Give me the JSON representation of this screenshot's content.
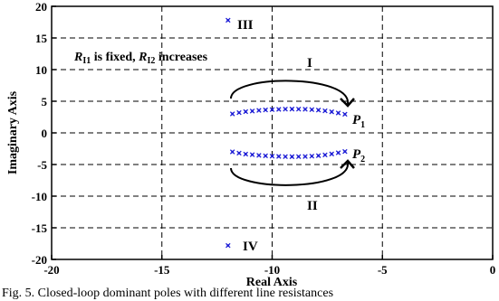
{
  "chart_data": {
    "type": "scatter",
    "xlabel": "Real Axis",
    "ylabel": "Imaginary Axis",
    "xlim": [
      -20,
      0
    ],
    "ylim": [
      -20,
      20
    ],
    "x_ticks": [
      -20,
      -15,
      -10,
      -5,
      0
    ],
    "y_ticks": [
      -20,
      -15,
      -10,
      -5,
      0,
      5,
      10,
      15,
      20
    ],
    "grid": true,
    "marker_color": "#1f1fd6",
    "series": [
      {
        "x": [
          -11.8,
          -11.5,
          -11.2,
          -10.9,
          -10.6,
          -10.3,
          -10.0,
          -9.7,
          -9.4,
          -9.1,
          -8.8,
          -8.5,
          -8.2,
          -7.9,
          -7.6,
          -7.3,
          -7.0,
          -6.7
        ],
        "y": [
          3.0,
          3.2,
          3.35,
          3.45,
          3.55,
          3.62,
          3.68,
          3.72,
          3.75,
          3.76,
          3.75,
          3.73,
          3.68,
          3.6,
          3.48,
          3.33,
          3.15,
          2.95
        ]
      },
      {
        "x": [
          -11.8,
          -11.5,
          -11.2,
          -10.9,
          -10.6,
          -10.3,
          -10.0,
          -9.7,
          -9.4,
          -9.1,
          -8.8,
          -8.5,
          -8.2,
          -7.9,
          -7.6,
          -7.3,
          -7.0,
          -6.7
        ],
        "y": [
          -3.0,
          -3.2,
          -3.35,
          -3.45,
          -3.55,
          -3.62,
          -3.68,
          -3.72,
          -3.75,
          -3.76,
          -3.75,
          -3.73,
          -3.68,
          -3.6,
          -3.48,
          -3.33,
          -3.15,
          -2.95
        ]
      },
      {
        "x": [
          -12.0
        ],
        "y": [
          17.8
        ]
      },
      {
        "x": [
          -12.0
        ],
        "y": [
          -17.8
        ]
      }
    ],
    "annotations": {
      "label_III": "III",
      "label_IV": "IV",
      "label_I": "I",
      "label_II": "II",
      "label_P1": "P",
      "label_P1_sub": "1",
      "label_P2": "P",
      "label_P2_sub": "2",
      "condition_R": "R",
      "condition_sub1": "I1",
      "condition_mid": " is fixed, ",
      "condition_sub2": "I2",
      "condition_end": " increases"
    }
  },
  "caption": "Fig. 5. Closed-loop dominant poles with different line resistances"
}
